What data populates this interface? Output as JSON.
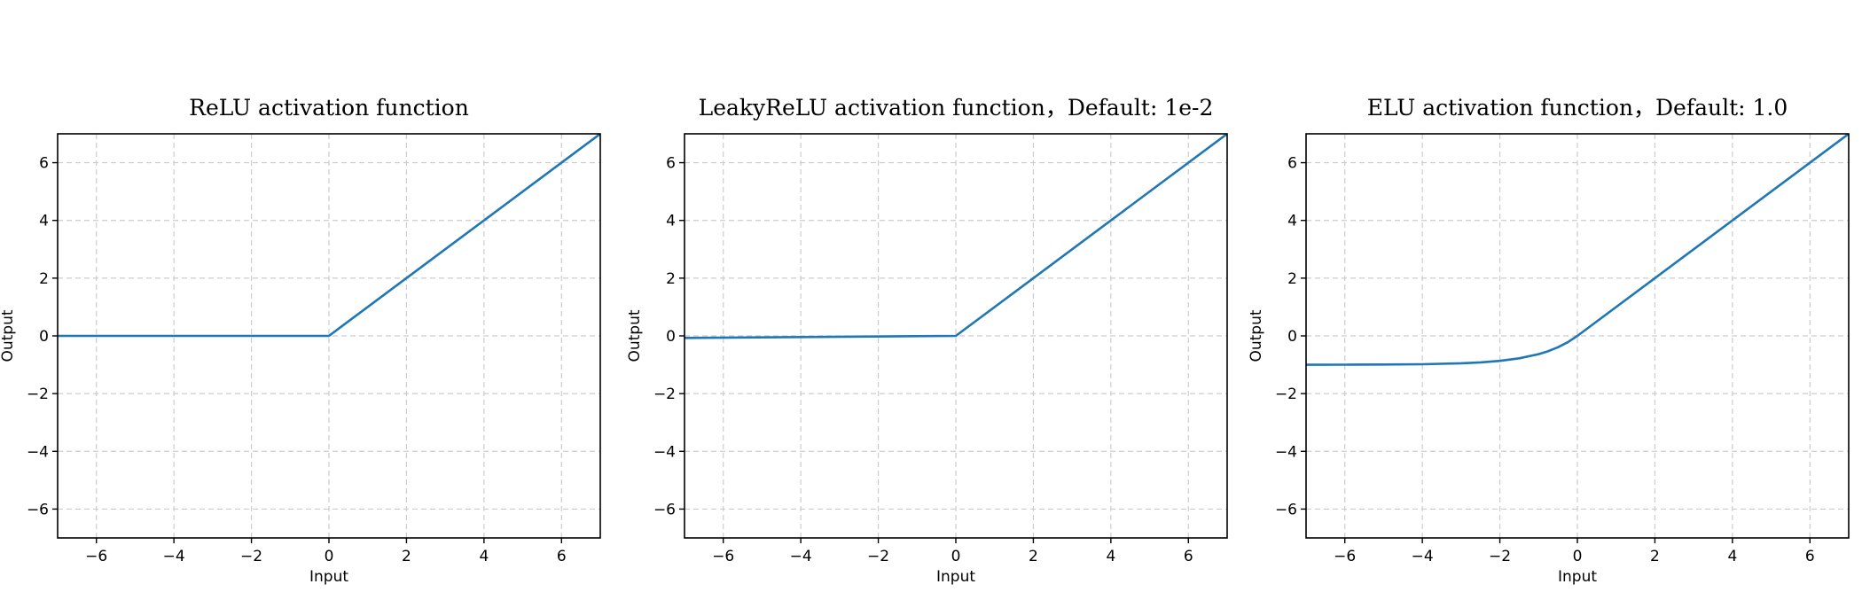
{
  "chart_data": [
    {
      "type": "line",
      "title": "ReLU activation function",
      "xlabel": "Input",
      "ylabel": "Output",
      "xlim": [
        -7,
        7
      ],
      "ylim": [
        -7,
        7
      ],
      "xticks": [
        -6,
        -4,
        -2,
        0,
        2,
        4,
        6
      ],
      "yticks": [
        -6,
        -4,
        -2,
        0,
        2,
        4,
        6
      ],
      "xtick_labels": [
        "−6",
        "−4",
        "−2",
        "0",
        "2",
        "4",
        "6"
      ],
      "ytick_labels": [
        "−6",
        "−4",
        "−2",
        "0",
        "2",
        "4",
        "6"
      ],
      "grid": true,
      "series": [
        {
          "function": "relu",
          "x": [
            -7,
            0,
            7
          ],
          "y": [
            0,
            0,
            7
          ],
          "color": "#1f77b4"
        }
      ]
    },
    {
      "type": "line",
      "title": "LeakyReLU activation function，Default: 1e-2",
      "xlabel": "Input",
      "ylabel": "Output",
      "xlim": [
        -7,
        7
      ],
      "ylim": [
        -7,
        7
      ],
      "xticks": [
        -6,
        -4,
        -2,
        0,
        2,
        4,
        6
      ],
      "yticks": [
        -6,
        -4,
        -2,
        0,
        2,
        4,
        6
      ],
      "xtick_labels": [
        "−6",
        "−4",
        "−2",
        "0",
        "2",
        "4",
        "6"
      ],
      "ytick_labels": [
        "−6",
        "−4",
        "−2",
        "0",
        "2",
        "4",
        "6"
      ],
      "grid": true,
      "series": [
        {
          "function": "leaky_relu",
          "negative_slope": 0.01,
          "x": [
            -7,
            0,
            7
          ],
          "y": [
            -0.07,
            0,
            7
          ],
          "color": "#1f77b4"
        }
      ]
    },
    {
      "type": "line",
      "title": "ELU activation function，Default: 1.0",
      "xlabel": "Input",
      "ylabel": "Output",
      "xlim": [
        -7,
        7
      ],
      "ylim": [
        -7,
        7
      ],
      "xticks": [
        -6,
        -4,
        -2,
        0,
        2,
        4,
        6
      ],
      "yticks": [
        -6,
        -4,
        -2,
        0,
        2,
        4,
        6
      ],
      "xtick_labels": [
        "−6",
        "−4",
        "−2",
        "0",
        "2",
        "4",
        "6"
      ],
      "ytick_labels": [
        "−6",
        "−4",
        "−2",
        "0",
        "2",
        "4",
        "6"
      ],
      "grid": true,
      "series": [
        {
          "function": "elu",
          "alpha": 1.0,
          "x": [
            -7,
            -6,
            -5,
            -4,
            -3,
            -2.5,
            -2,
            -1.5,
            -1,
            -0.75,
            -0.5,
            -0.25,
            0,
            7
          ],
          "y": [
            -0.999,
            -0.998,
            -0.993,
            -0.982,
            -0.95,
            -0.918,
            -0.865,
            -0.777,
            -0.632,
            -0.528,
            -0.393,
            -0.221,
            0,
            7
          ],
          "color": "#1f77b4"
        }
      ]
    }
  ]
}
